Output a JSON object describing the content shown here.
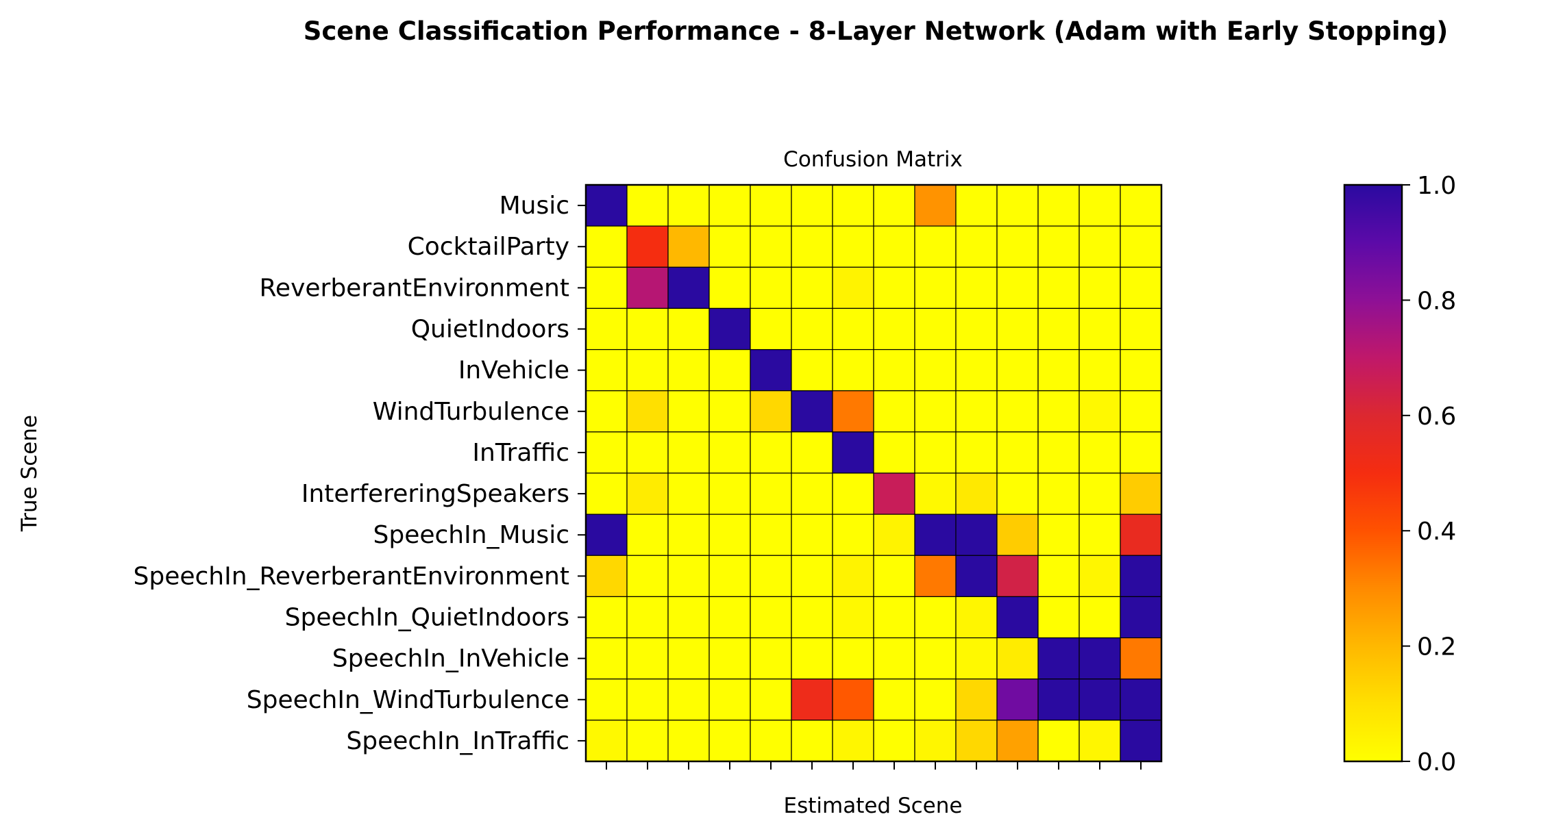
{
  "chart_data": {
    "type": "heatmap",
    "title": "Scene Classification Performance - 8-Layer Network (Adam with Early Stopping)",
    "subtitle": "Confusion Matrix",
    "xlabel": "Estimated Scene",
    "ylabel": "True Scene",
    "row_labels": [
      "Music",
      "CocktailParty",
      "ReverberantEnvironment",
      "QuietIndoors",
      "InVehicle",
      "WindTurbulence",
      "InTraffic",
      "InterfereringSpeakers",
      "SpeechIn_Music",
      "SpeechIn_ReverberantEnvironment",
      "SpeechIn_QuietIndoors",
      "SpeechIn_InVehicle",
      "SpeechIn_WindTurbulence",
      "SpeechIn_InTraffic"
    ],
    "values": [
      [
        1.0,
        0.0,
        0.0,
        0.0,
        0.0,
        0.0,
        0.0,
        0.0,
        0.28,
        0.0,
        0.0,
        0.0,
        0.0,
        0.0
      ],
      [
        0.0,
        0.5,
        0.2,
        0.0,
        0.0,
        0.0,
        0.0,
        0.0,
        0.0,
        0.0,
        0.0,
        0.0,
        0.0,
        0.0
      ],
      [
        0.0,
        0.72,
        1.0,
        0.0,
        0.0,
        0.0,
        0.04,
        0.0,
        0.0,
        0.0,
        0.0,
        0.0,
        0.0,
        0.0
      ],
      [
        0.0,
        0.0,
        0.0,
        1.0,
        0.0,
        0.0,
        0.0,
        0.0,
        0.0,
        0.0,
        0.0,
        0.0,
        0.0,
        0.0
      ],
      [
        0.0,
        0.0,
        0.0,
        0.0,
        1.0,
        0.0,
        0.0,
        0.0,
        0.0,
        0.0,
        0.0,
        0.0,
        0.0,
        0.0
      ],
      [
        0.0,
        0.1,
        0.0,
        0.0,
        0.12,
        1.0,
        0.33,
        0.0,
        0.0,
        0.0,
        0.0,
        0.0,
        0.02,
        0.0
      ],
      [
        0.0,
        0.0,
        0.0,
        0.0,
        0.0,
        0.0,
        1.0,
        0.0,
        0.0,
        0.0,
        0.0,
        0.0,
        0.0,
        0.0
      ],
      [
        0.0,
        0.06,
        0.0,
        0.0,
        0.0,
        0.0,
        0.0,
        0.67,
        0.02,
        0.07,
        0.0,
        0.0,
        0.0,
        0.15
      ],
      [
        1.0,
        0.0,
        0.0,
        0.0,
        0.0,
        0.0,
        0.0,
        0.04,
        1.0,
        1.0,
        0.15,
        0.0,
        0.0,
        0.55
      ],
      [
        0.12,
        0.0,
        0.0,
        0.0,
        0.0,
        0.0,
        0.04,
        0.0,
        0.33,
        1.0,
        0.64,
        0.0,
        0.03,
        1.0
      ],
      [
        0.0,
        0.0,
        0.0,
        0.0,
        0.0,
        0.0,
        0.02,
        0.0,
        0.0,
        0.03,
        1.0,
        0.0,
        0.0,
        1.0
      ],
      [
        0.0,
        0.0,
        0.0,
        0.0,
        0.0,
        0.0,
        0.0,
        0.0,
        0.0,
        0.02,
        0.06,
        1.0,
        1.0,
        0.33
      ],
      [
        0.0,
        0.0,
        0.0,
        0.0,
        0.0,
        0.53,
        0.39,
        0.0,
        0.0,
        0.12,
        0.86,
        1.0,
        1.0,
        1.0
      ],
      [
        0.02,
        0.0,
        0.0,
        0.0,
        0.0,
        0.0,
        0.03,
        0.0,
        0.03,
        0.12,
        0.25,
        0.0,
        0.03,
        1.0
      ]
    ],
    "colormap": "plasma_r",
    "colorbar": {
      "range": [
        0.0,
        1.0
      ],
      "ticks": [
        0.0,
        0.2,
        0.4,
        0.6,
        0.8,
        1.0
      ],
      "tick_labels": [
        "0.0",
        "0.2",
        "0.4",
        "0.6",
        "0.8",
        "1.0"
      ]
    },
    "x_tick_count": 14,
    "grid": true
  }
}
